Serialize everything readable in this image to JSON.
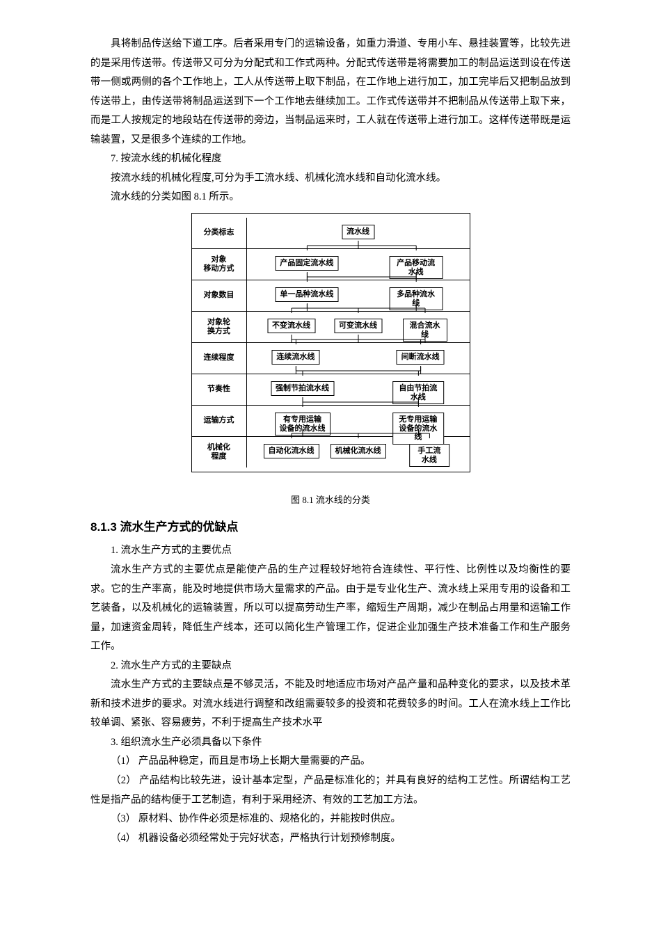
{
  "intro_para": "具将制品传送给下道工序。后者采用专门的运输设备，如重力滑道、专用小车、悬挂装置等，比较先进的是采用传送带。传送带又可分为分配式和工作式两种。分配式传送带是将需要加工的制品运送到设在传送带一侧或两侧的各个工作地上，工人从传送带上取下制品，在工作地上进行加工，加工完毕后又把制品放到传送带上，由传送带将制品运送到下一个工作地去继续加工。工作式传送带并不把制品从传送带上取下来，而是工人按规定的地段站在传送带的旁边，当制品运来时，工人就在传送带上进行加工。这样传送带既是运输装置，又是很多个连续的工作地。",
  "item7_title": "7. 按流水线的机械化程度",
  "item7_p1": "按流水线的机械化程度,可分为手工流水线、机械化流水线和自动化流水线。",
  "item7_p2": "流水线的分类如图 8.1 所示。",
  "diagram": {
    "rows": [
      {
        "label": "分类标志",
        "nodes": [
          {
            "t": "流水线",
            "x": 50
          }
        ]
      },
      {
        "label": "对象\n移动方式",
        "nodes": [
          {
            "t": "产品固定流水线",
            "x": 27
          },
          {
            "t": "产品移动流水线",
            "x": 76
          }
        ]
      },
      {
        "label": "对象数目",
        "nodes": [
          {
            "t": "单一品种流水线",
            "x": 27
          },
          {
            "t": "多品种流水线",
            "x": 76
          }
        ]
      },
      {
        "label": "对象轮\n换方式",
        "nodes": [
          {
            "t": "不变流水线",
            "x": 20
          },
          {
            "t": "可变流水线",
            "x": 50
          },
          {
            "t": "混合流水线",
            "x": 80
          }
        ]
      },
      {
        "label": "连续程度",
        "nodes": [
          {
            "t": "连续流水线",
            "x": 22
          },
          {
            "t": "间断流水线",
            "x": 78
          }
        ]
      },
      {
        "label": "节奏性",
        "nodes": [
          {
            "t": "强制节拍流水线",
            "x": 25
          },
          {
            "t": "自由节拍流水线",
            "x": 77
          }
        ]
      },
      {
        "label": "运输方式",
        "nodes": [
          {
            "t": "有专用运输\n设备的流水线",
            "x": 25
          },
          {
            "t": "无专用运输\n设备的流水线",
            "x": 77
          }
        ]
      },
      {
        "label": "机械化\n程度",
        "nodes": [
          {
            "t": "自动化流水线",
            "x": 20
          },
          {
            "t": "机械化流水线",
            "x": 50
          },
          {
            "t": "手工流水线",
            "x": 82
          }
        ]
      }
    ]
  },
  "figure_caption": "图 8.1 流水线的分类",
  "section_heading": "8.1.3 流水生产方式的优缺点",
  "adv_title": "1. 流水生产方式的主要优点",
  "adv_para": "流水生产方式的主要优点是能使产品的生产过程较好地符合连续性、平行性、比例性以及均衡性的要求。它的生产率高，能及时地提供市场大量需求的产品。由于是专业化生产、流水线上采用专用的设备和工艺装备，以及机械化的运输装置，所以可以提高劳动生产率，缩短生产周期，减少在制品占用量和运输工作量，加速资金周转，降低生产线本，还可以简化生产管理工作，促进企业加强生产技术准备工作和生产服务工作。",
  "disadv_title": "2. 流水生产方式的主要缺点",
  "disadv_para": "流水生产方式的主要缺点是不够灵活，不能及时地适应市场对产品产量和品种变化的要求，以及技术革新和技术进步的要求。对流水线进行调整和改组需要较多的投资和花费较多的时间。工人在流水线上工作比较单调、紧张、容易疲劳，不利于提高生产技术水平",
  "cond_title": "3. 组织流水生产必须具备以下条件",
  "cond_items": [
    "（1） 产品品种稳定，而且是市场上长期大量需要的产品。",
    "（2） 产品结构比较先进，设计基本定型，产品是标准化的；并具有良好的结构工艺性。所谓结构工艺性是指产品的结构便于工艺制造，有利于采用经济、有效的工艺加工方法。",
    "（3） 原材料、协作件必须是标准的、规格化的，并能按时供应。",
    "（4） 机器设备必须经常处于完好状态，严格执行计划预修制度。"
  ]
}
